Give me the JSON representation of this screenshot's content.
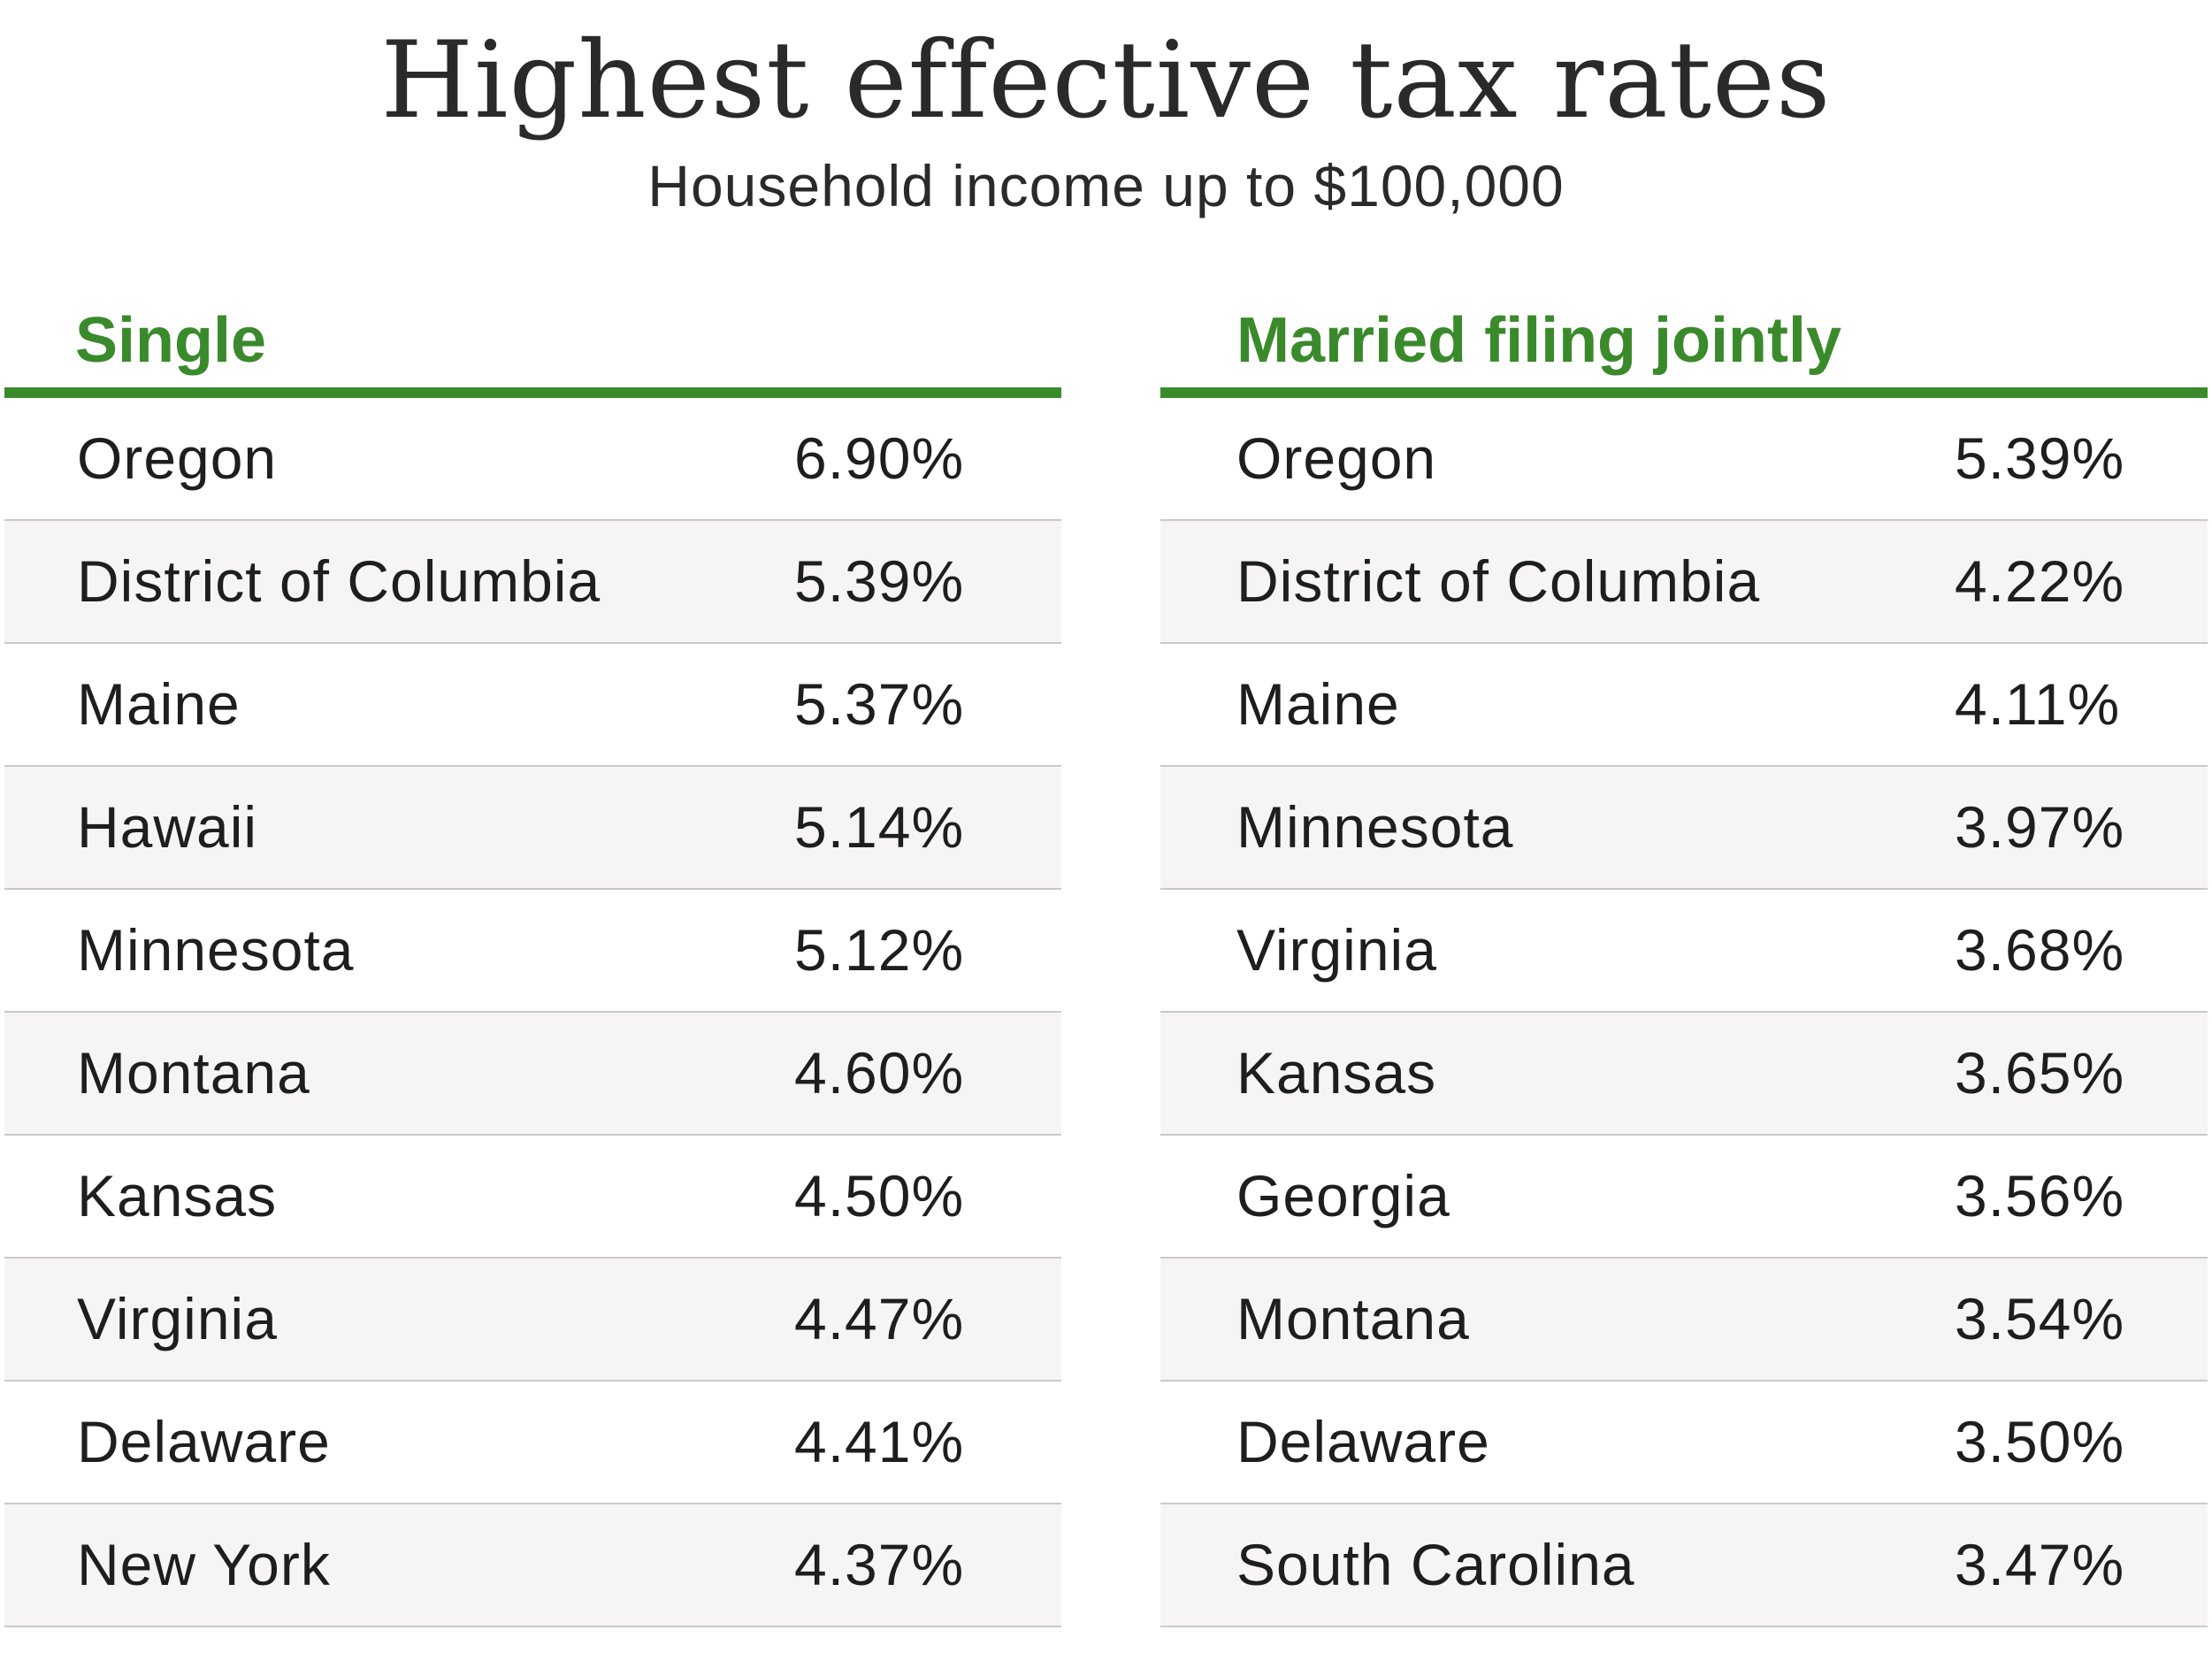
{
  "title": "Highest effective tax rates",
  "subtitle": "Household income up to $100,000",
  "colors": {
    "accent": "#3a8a2c",
    "row_alt": "#f6f5f3",
    "divider": "#c9c9c9",
    "text": "#1e1e1e"
  },
  "chart_data": {
    "type": "table",
    "title": "Highest effective tax rates",
    "subtitle": "Household income up to $100,000",
    "tables": [
      {
        "name": "Single",
        "rows": [
          {
            "state": "Oregon",
            "rate": "6.90%"
          },
          {
            "state": "District of Columbia",
            "rate": "5.39%"
          },
          {
            "state": "Maine",
            "rate": "5.37%"
          },
          {
            "state": "Hawaii",
            "rate": "5.14%"
          },
          {
            "state": "Minnesota",
            "rate": "5.12%"
          },
          {
            "state": "Montana",
            "rate": "4.60%"
          },
          {
            "state": "Kansas",
            "rate": "4.50%"
          },
          {
            "state": "Virginia",
            "rate": "4.47%"
          },
          {
            "state": "Delaware",
            "rate": "4.41%"
          },
          {
            "state": "New York",
            "rate": "4.37%"
          }
        ]
      },
      {
        "name": "Married filing jointly",
        "rows": [
          {
            "state": "Oregon",
            "rate": "5.39%"
          },
          {
            "state": "District of Columbia",
            "rate": "4.22%"
          },
          {
            "state": "Maine",
            "rate": "4.11%"
          },
          {
            "state": "Minnesota",
            "rate": "3.97%"
          },
          {
            "state": "Virginia",
            "rate": "3.68%"
          },
          {
            "state": "Kansas",
            "rate": "3.65%"
          },
          {
            "state": "Georgia",
            "rate": "3.56%"
          },
          {
            "state": "Montana",
            "rate": "3.54%"
          },
          {
            "state": "Delaware",
            "rate": "3.50%"
          },
          {
            "state": "South Carolina",
            "rate": "3.47%"
          }
        ]
      }
    ]
  }
}
